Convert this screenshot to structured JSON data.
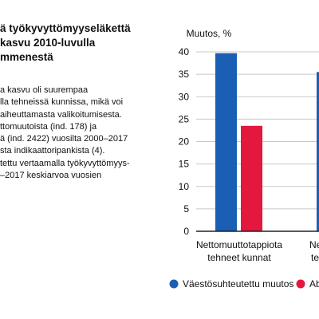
{
  "heading": "ä työkyvyttömyyseläkettä\nkasvu 2010-luvulla\nmmenestä",
  "description": "a kasvu oli suurempaa\nlla tehneissä kunnissa, mikä voi\naiheuttamasta valikoitumisesta.\nttomuutoista (ind. 178) ja\nä (ind. 2422) vuosilta 2000–2017\nsta indikaattoripankista (4).\ntettu vertaamalla työkyvyttömyys-\n–2017 keskiarvoa vuosien",
  "colors": {
    "blue": "#1a5fb4",
    "red": "#e4173e",
    "grid": "#c8c8c8",
    "axis": "#222222"
  },
  "chart_data": {
    "type": "bar",
    "ylabel": "Muutos, %",
    "ylim": [
      0,
      40
    ],
    "yticks": [
      0,
      5,
      10,
      15,
      20,
      25,
      30,
      35,
      40
    ],
    "categories": [
      "Nettomuuttotappiota\ntehneet kunnat",
      "Netto\nte"
    ],
    "series": [
      {
        "name": "Väestösuhteutettu muutos",
        "color": "#1a5fb4",
        "values": [
          39.7,
          35.5
        ]
      },
      {
        "name": "Ab",
        "color": "#e4173e",
        "values": [
          23.5,
          null
        ]
      }
    ],
    "grid": true,
    "legend_position": "bottom"
  }
}
